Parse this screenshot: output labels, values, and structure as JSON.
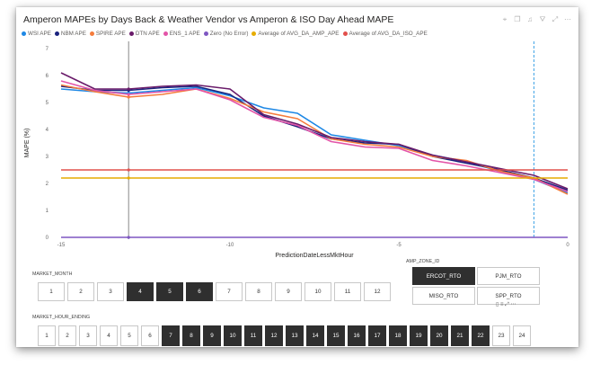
{
  "title": "Amperon MAPEs by Days Back & Weather Vendor vs Amperon & ISO Day Ahead MAPE",
  "header_icons": [
    "pin-icon",
    "copy-icon",
    "bell-icon",
    "filter-icon",
    "focus-icon",
    "more-icon"
  ],
  "legend": [
    {
      "label": "WSI APE",
      "color": "#1e88e5"
    },
    {
      "label": "NBM APE",
      "color": "#1a237e"
    },
    {
      "label": "SPIRE APE",
      "color": "#f57c3c"
    },
    {
      "label": "DTN APE",
      "color": "#6a1b6a"
    },
    {
      "label": "ENS_1 APE",
      "color": "#e354a8"
    },
    {
      "label": "Zero (No Error)",
      "color": "#7e57c2"
    },
    {
      "label": "Average of AVG_DA_AMP_APE",
      "color": "#e6ac00"
    },
    {
      "label": "Average of AVG_DA_ISO_APE",
      "color": "#e2504c"
    }
  ],
  "chart_data": {
    "type": "line",
    "xlabel": "PredictionDateLessMktHour",
    "ylabel": "MAPE (%)",
    "xlim": [
      -15,
      0
    ],
    "ylim": [
      0,
      7
    ],
    "xticks": [
      -15,
      -10,
      -5,
      0
    ],
    "yticks": [
      0,
      1,
      2,
      3,
      4,
      5,
      6,
      7
    ],
    "series": [
      {
        "name": "WSI APE",
        "color": "#1e88e5",
        "x": [
          -15,
          -14,
          -13,
          -12,
          -11,
          -10,
          -9,
          -8,
          -7,
          -6,
          -5,
          -4,
          -3,
          -2,
          -1,
          0
        ],
        "y": [
          5.5,
          5.4,
          5.35,
          5.45,
          5.55,
          5.25,
          4.8,
          4.6,
          3.8,
          3.6,
          3.4,
          3.05,
          2.8,
          2.45,
          2.15,
          1.65
        ]
      },
      {
        "name": "NBM APE",
        "color": "#1a237e",
        "x": [
          -15,
          -14,
          -13,
          -12,
          -11,
          -10,
          -9,
          -8,
          -7,
          -6,
          -5,
          -4,
          -3,
          -2,
          -1,
          0
        ],
        "y": [
          5.6,
          5.45,
          5.45,
          5.55,
          5.6,
          5.3,
          4.5,
          4.1,
          3.65,
          3.5,
          3.45,
          3.0,
          2.75,
          2.5,
          2.2,
          1.75
        ]
      },
      {
        "name": "SPIRE APE",
        "color": "#f57c3c",
        "x": [
          -15,
          -14,
          -13,
          -12,
          -11,
          -10,
          -9,
          -8,
          -7,
          -6,
          -5,
          -4,
          -3,
          -2,
          -1,
          0
        ],
        "y": [
          5.65,
          5.4,
          5.2,
          5.3,
          5.5,
          5.15,
          4.65,
          4.4,
          3.65,
          3.45,
          3.35,
          3.0,
          2.85,
          2.45,
          2.2,
          1.6
        ]
      },
      {
        "name": "DTN APE",
        "color": "#6a1b6a",
        "x": [
          -15,
          -14,
          -13,
          -12,
          -11,
          -10,
          -9,
          -8,
          -7,
          -6,
          -5,
          -4,
          -3,
          -2,
          -1,
          0
        ],
        "y": [
          6.1,
          5.5,
          5.5,
          5.6,
          5.65,
          5.5,
          4.55,
          4.2,
          3.7,
          3.55,
          3.45,
          3.05,
          2.8,
          2.55,
          2.3,
          1.8
        ]
      },
      {
        "name": "ENS_1 APE",
        "color": "#e354a8",
        "x": [
          -15,
          -14,
          -13,
          -12,
          -11,
          -10,
          -9,
          -8,
          -7,
          -6,
          -5,
          -4,
          -3,
          -2,
          -1,
          0
        ],
        "y": [
          5.8,
          5.45,
          5.3,
          5.4,
          5.5,
          5.1,
          4.45,
          4.15,
          3.55,
          3.35,
          3.3,
          2.85,
          2.65,
          2.4,
          2.15,
          1.7
        ]
      },
      {
        "name": "Zero (No Error)",
        "color": "#7e57c2",
        "x": [
          -15,
          0
        ],
        "y": [
          0,
          0
        ]
      },
      {
        "name": "Average of AVG_DA_AMP_APE",
        "color": "#e6ac00",
        "x": [
          -15,
          0
        ],
        "y": [
          2.2,
          2.2
        ]
      },
      {
        "name": "Average of AVG_DA_ISO_APE",
        "color": "#e2504c",
        "x": [
          -15,
          0
        ],
        "y": [
          2.5,
          2.5
        ]
      }
    ],
    "reference_lines": [
      {
        "x": -13,
        "style": "solid",
        "color": "#888888"
      },
      {
        "x": -1,
        "style": "dashed",
        "color": "#3aa0e6"
      }
    ]
  },
  "market_month": {
    "title": "MARKET_MONTH",
    "items": [
      {
        "label": "1",
        "selected": false
      },
      {
        "label": "2",
        "selected": false
      },
      {
        "label": "3",
        "selected": false
      },
      {
        "label": "4",
        "selected": true
      },
      {
        "label": "5",
        "selected": true
      },
      {
        "label": "6",
        "selected": true
      },
      {
        "label": "7",
        "selected": false
      },
      {
        "label": "8",
        "selected": false
      },
      {
        "label": "9",
        "selected": false
      },
      {
        "label": "10",
        "selected": false
      },
      {
        "label": "11",
        "selected": false
      },
      {
        "label": "12",
        "selected": false
      }
    ]
  },
  "amp_zone": {
    "title": "AMP_ZONE_ID",
    "items": [
      {
        "label": "ERCOT_RTO",
        "selected": true
      },
      {
        "label": "PJM_RTO",
        "selected": false
      },
      {
        "label": "MISO_RTO",
        "selected": false
      },
      {
        "label": "SPP_RTO",
        "selected": false
      }
    ]
  },
  "market_hour": {
    "title": "MARKET_HOUR_ENDING",
    "items": [
      {
        "label": "1",
        "selected": false
      },
      {
        "label": "2",
        "selected": false
      },
      {
        "label": "3",
        "selected": false
      },
      {
        "label": "4",
        "selected": false
      },
      {
        "label": "5",
        "selected": false
      },
      {
        "label": "6",
        "selected": false
      },
      {
        "label": "7",
        "selected": true
      },
      {
        "label": "8",
        "selected": true
      },
      {
        "label": "9",
        "selected": true
      },
      {
        "label": "10",
        "selected": true
      },
      {
        "label": "11",
        "selected": true
      },
      {
        "label": "12",
        "selected": true
      },
      {
        "label": "13",
        "selected": true
      },
      {
        "label": "14",
        "selected": true
      },
      {
        "label": "15",
        "selected": true
      },
      {
        "label": "16",
        "selected": true
      },
      {
        "label": "17",
        "selected": true
      },
      {
        "label": "18",
        "selected": true
      },
      {
        "label": "19",
        "selected": true
      },
      {
        "label": "20",
        "selected": true
      },
      {
        "label": "21",
        "selected": true
      },
      {
        "label": "22",
        "selected": true
      },
      {
        "label": "23",
        "selected": false
      },
      {
        "label": "24",
        "selected": false
      }
    ]
  }
}
